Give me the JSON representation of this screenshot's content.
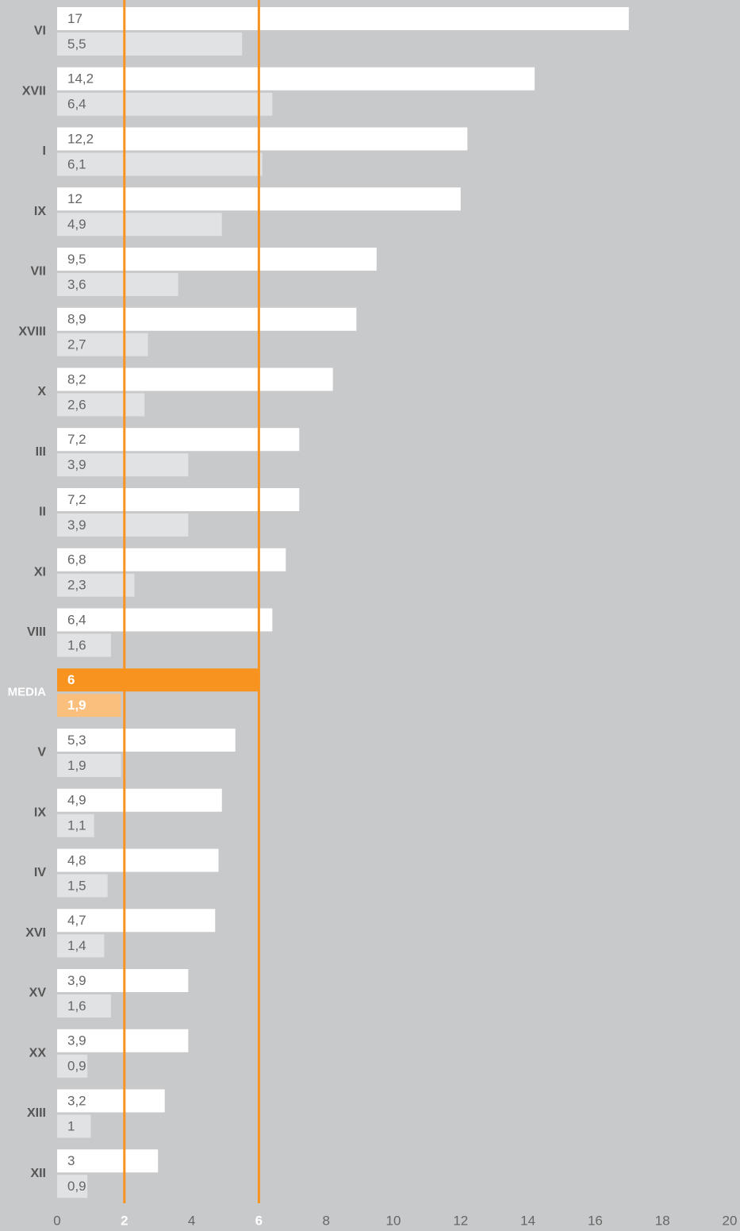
{
  "chart_data": {
    "type": "grouped_hbar",
    "categories": [
      "VI",
      "XVII",
      "I",
      "IX",
      "VII",
      "XVIII",
      "X",
      "III",
      "II",
      "XI",
      "VIII",
      "MEDIA",
      "V",
      "IX",
      "IV",
      "XVI",
      "XV",
      "XX",
      "XIII",
      "XII"
    ],
    "series": [
      {
        "color": "#ffffff",
        "values": [
          17,
          14.2,
          12.2,
          12,
          9.5,
          8.9,
          8.2,
          7.2,
          7.2,
          6.8,
          6.4,
          6,
          5.3,
          4.9,
          4.8,
          4.7,
          3.9,
          3.9,
          3.2,
          3
        ],
        "value_labels": [
          "17",
          "14,2",
          "12,2",
          "12",
          "9,5",
          "8,9",
          "8,2",
          "7,2",
          "7,2",
          "6,8",
          "6,4",
          "6",
          "5,3",
          "4,9",
          "4,8",
          "4,7",
          "3,9",
          "3,9",
          "3,2",
          "3"
        ]
      },
      {
        "color": "#e1e2e3",
        "values": [
          5.5,
          6.4,
          6.1,
          4.9,
          3.6,
          2.7,
          2.6,
          3.9,
          3.9,
          2.3,
          1.6,
          1.9,
          1.9,
          1.1,
          1.5,
          1.4,
          1.6,
          0.9,
          1,
          0.9
        ],
        "value_labels": [
          "5,5",
          "6,4",
          "6,1",
          "4,9",
          "3,6",
          "2,7",
          "2,6",
          "3,9",
          "3,9",
          "2,3",
          "1,6",
          "1,9",
          "1,9",
          "1,1",
          "1,5",
          "1,4",
          "1,6",
          "0,9",
          "1",
          "0,9"
        ]
      }
    ],
    "highlight": {
      "categories": [
        "MEDIA"
      ],
      "colors": [
        "#f7931e",
        "#fbbf7d"
      ]
    },
    "reference_lines": {
      "values": [
        2,
        6
      ],
      "color": "#f7931e"
    },
    "xlim": [
      0,
      20
    ],
    "xticks": [
      0,
      2,
      4,
      6,
      8,
      10,
      12,
      14,
      16,
      18,
      20
    ]
  }
}
